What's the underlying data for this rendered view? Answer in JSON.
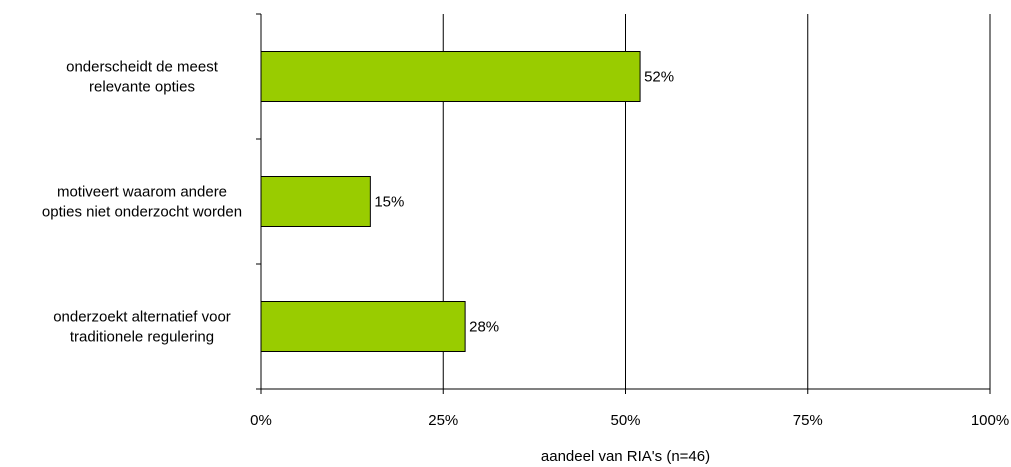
{
  "chart_data": {
    "type": "bar",
    "orientation": "horizontal",
    "categories": [
      [
        "onderscheidt de meest",
        "relevante opties"
      ],
      [
        "motiveert waarom andere",
        "opties niet onderzocht worden"
      ],
      [
        "onderzoekt alternatief voor",
        "traditionele regulering"
      ]
    ],
    "values": [
      52,
      15,
      28
    ],
    "value_labels": [
      "52%",
      "15%",
      "28%"
    ],
    "xlabel": "aandeel van RIA's (n=46)",
    "xlim": [
      0,
      100
    ],
    "xticks": [
      0,
      25,
      50,
      75,
      100
    ],
    "xtick_labels": [
      "0%",
      "25%",
      "50%",
      "75%",
      "100%"
    ],
    "grid": "vertical",
    "legend": "none",
    "bar_color": "#99cc00",
    "bar_edge_color": "#000000"
  }
}
